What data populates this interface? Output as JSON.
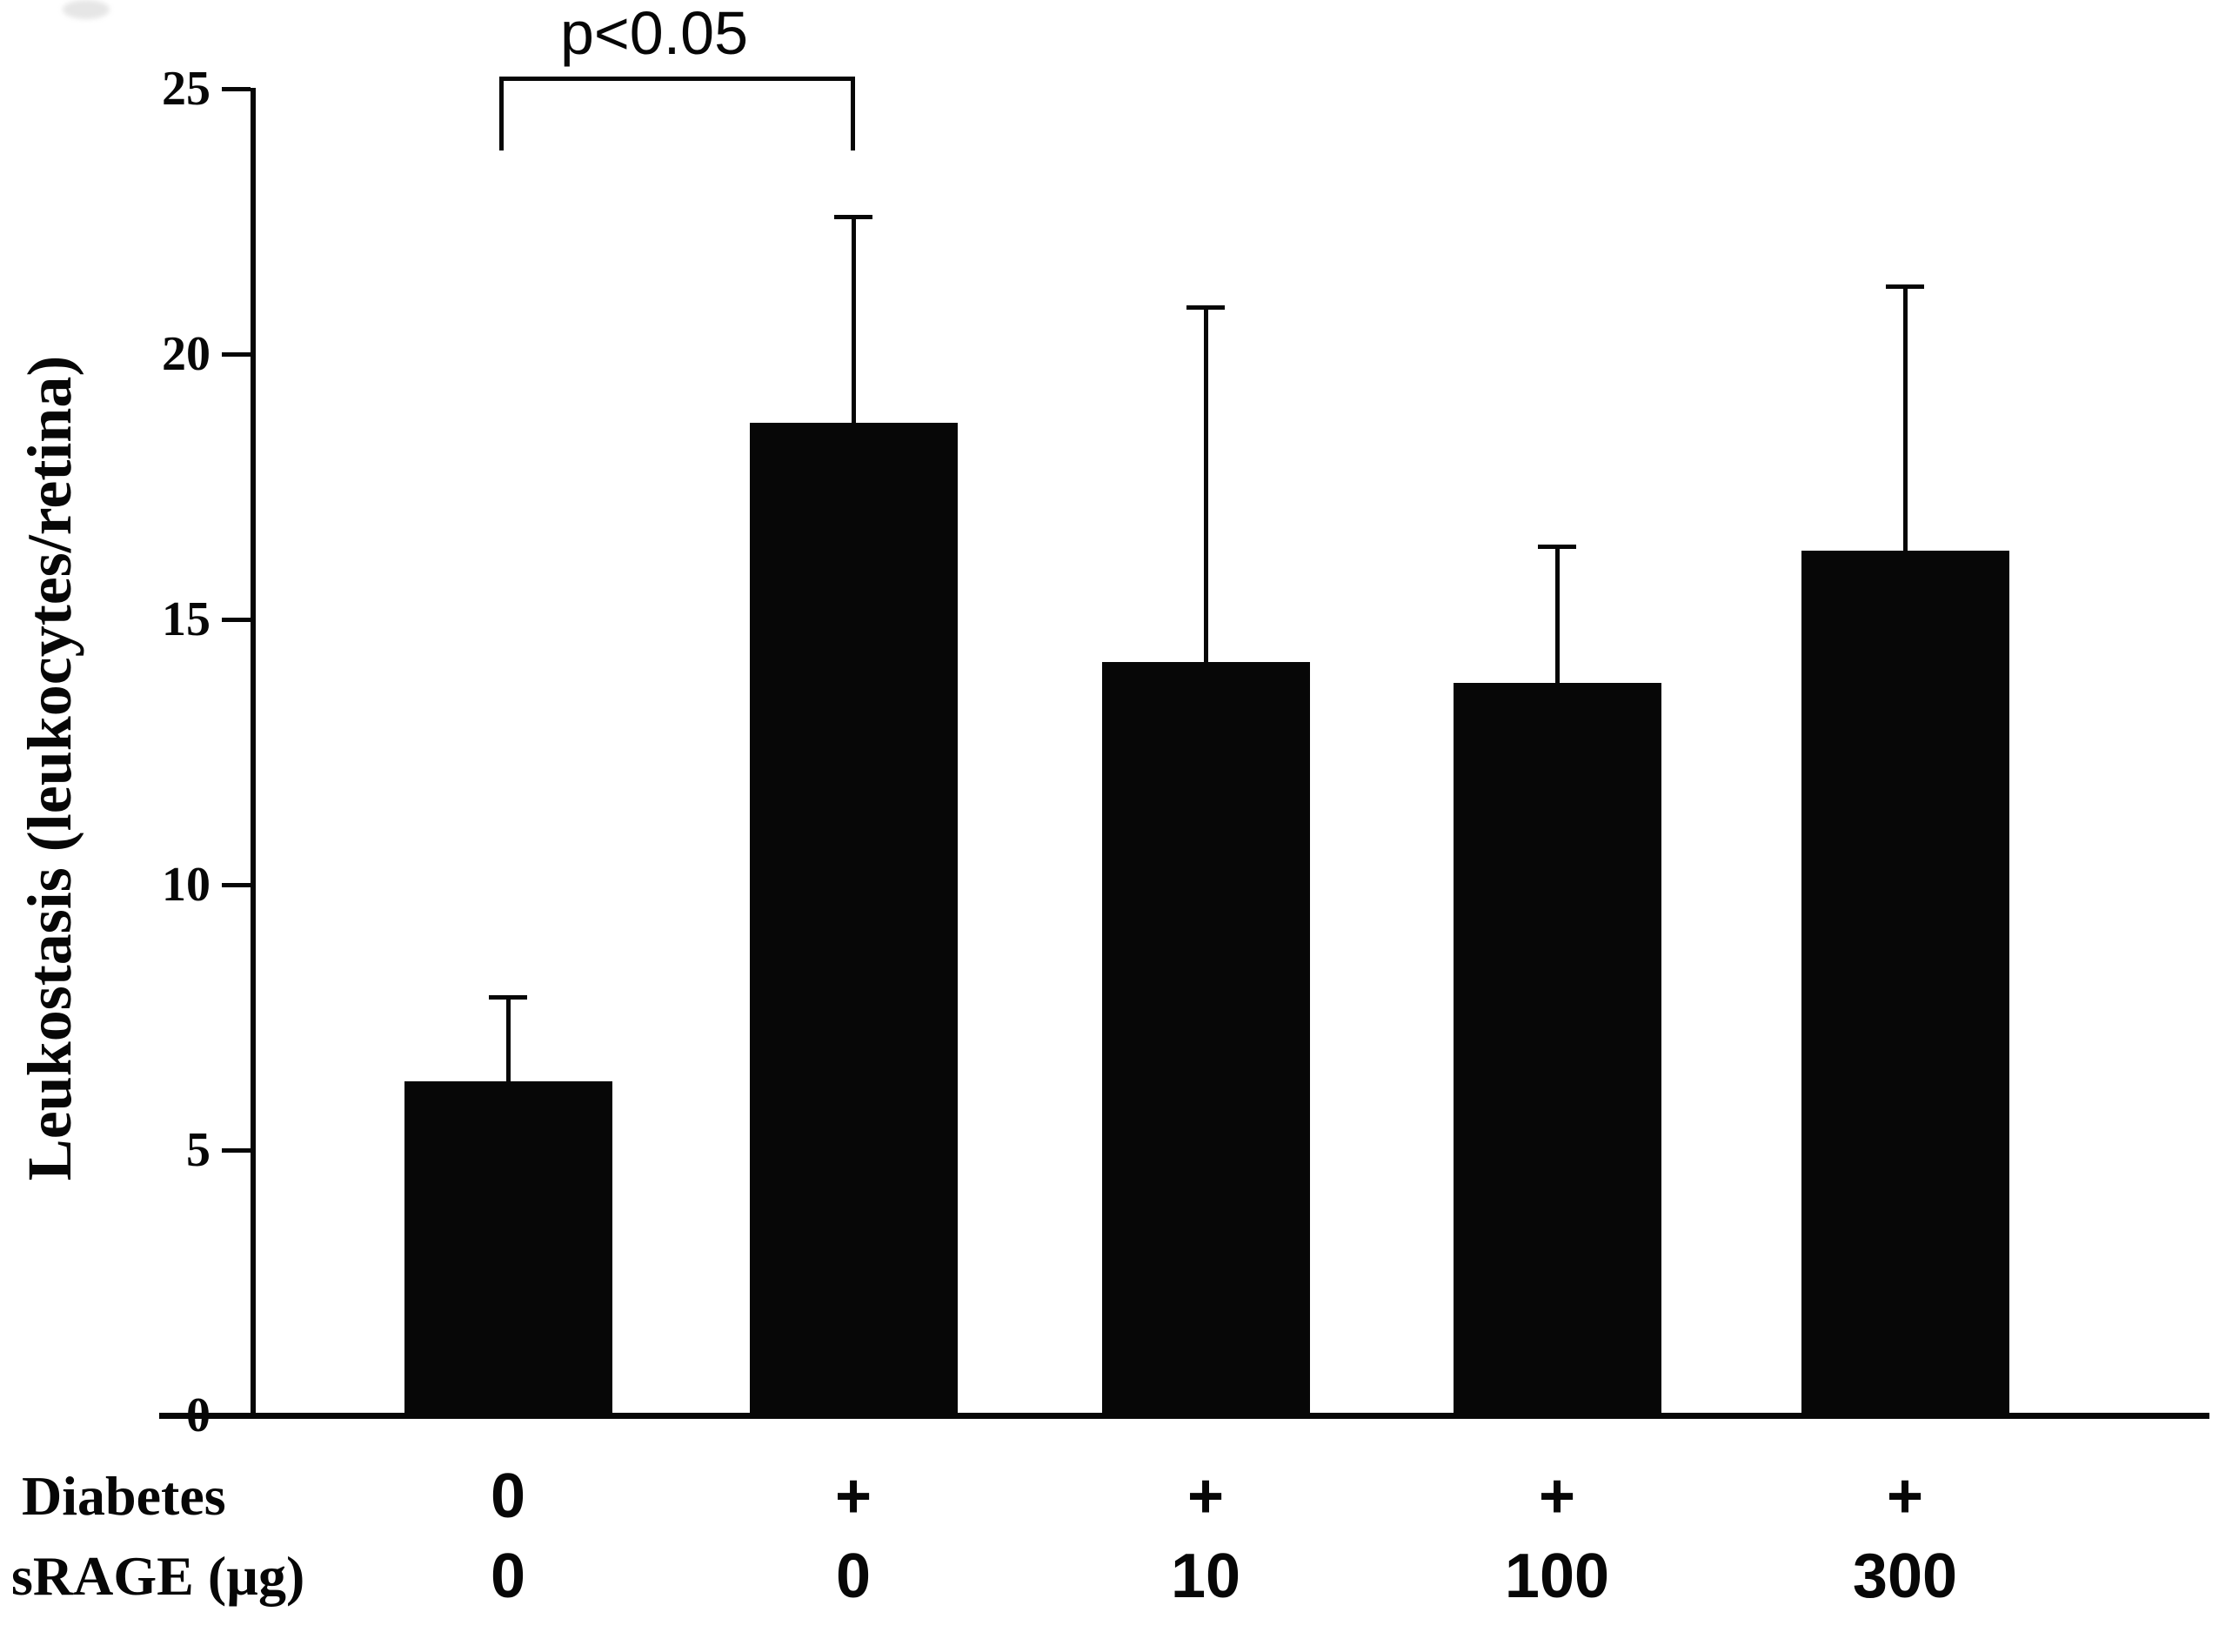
{
  "figure": {
    "background_color": "#ffffff",
    "ink_color": "#070707"
  },
  "chart_data": {
    "type": "bar",
    "title": "",
    "xlabel": "",
    "ylabel": "Leukostasis (leukocytes/retina)",
    "ylim": [
      0,
      25
    ],
    "yticks": [
      0,
      5,
      10,
      15,
      20,
      25
    ],
    "grid": false,
    "legend": false,
    "bar_color": "#070707",
    "categories": [
      "Diabetes 0 / sRAGE 0",
      "Diabetes + / sRAGE 0",
      "Diabetes + / sRAGE 10",
      "Diabetes + / sRAGE 100",
      "Diabetes + / sRAGE 300"
    ],
    "values": [
      6.3,
      18.7,
      14.2,
      13.8,
      16.3
    ],
    "errors_upper": [
      1.6,
      3.9,
      6.7,
      2.6,
      5.0
    ],
    "x_axis_rows": [
      {
        "label": "Diabetes",
        "values": [
          "0",
          "+",
          "+",
          "+",
          "+"
        ]
      },
      {
        "label": "sRAGE (µg)",
        "values": [
          "0",
          "0",
          "10",
          "100",
          "300"
        ]
      }
    ],
    "significance": {
      "label": "p<0.05",
      "between_categories": [
        0,
        1
      ]
    }
  }
}
